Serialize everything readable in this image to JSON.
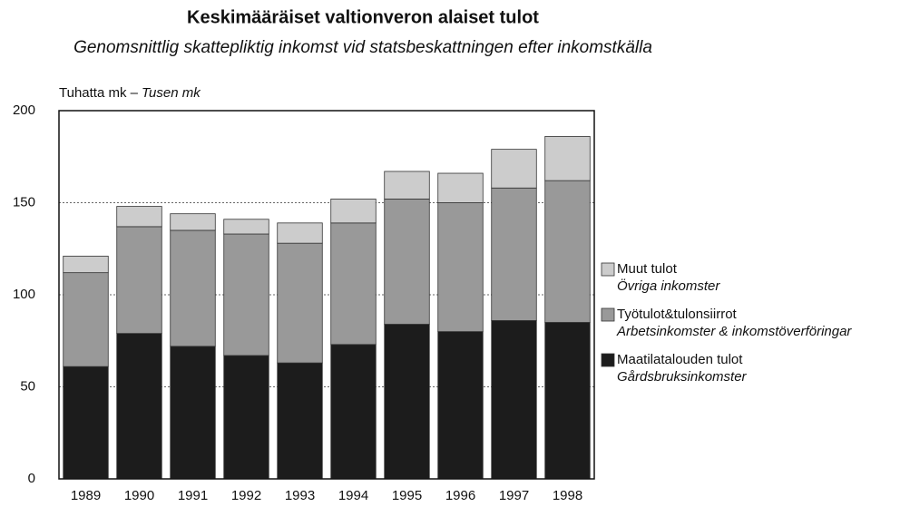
{
  "chart_data": {
    "type": "stacked_bar",
    "title": "Keskimääräiset valtionveron alaiset tulot",
    "subtitle": "Genomsnittlig skattepliktig inkomst vid statsbeskattningen efter inkomstkälla",
    "y_label": "Tuhatta mk –",
    "y_label_sv": "Tusen mk",
    "categories": [
      "1989",
      "1990",
      "1991",
      "1992",
      "1993",
      "1994",
      "1995",
      "1996",
      "1997",
      "1998"
    ],
    "series": [
      {
        "name": "Maatilatalouden tulot",
        "name_sv": "Gårdsbruksinkomster",
        "color": "#1c1c1c",
        "values": [
          61,
          79,
          72,
          67,
          63,
          73,
          84,
          80,
          86,
          85
        ]
      },
      {
        "name": "Työtulot&tulonsiirrot",
        "name_sv": "Arbetsinkomster & inkomstöverföringar",
        "color": "#999999",
        "values": [
          51,
          58,
          63,
          66,
          65,
          66,
          68,
          70,
          72,
          77
        ]
      },
      {
        "name": "Muut tulot",
        "name_sv": "Övriga inkomster",
        "color": "#cccccc",
        "values": [
          9,
          11,
          9,
          8,
          11,
          13,
          15,
          16,
          21,
          24
        ]
      }
    ],
    "ylim": [
      0,
      200
    ],
    "yticks": [
      0,
      50,
      100,
      150,
      200
    ],
    "grid": true
  }
}
